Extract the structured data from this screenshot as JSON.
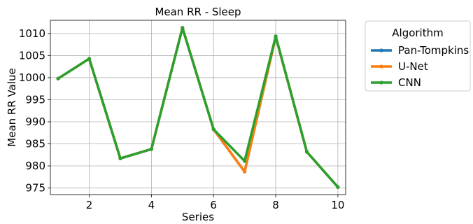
{
  "chart_data": {
    "type": "line",
    "title": "Mean RR - Sleep",
    "xlabel": "Series",
    "ylabel": "Mean RR Value",
    "x": [
      1,
      2,
      3,
      4,
      5,
      6,
      7,
      8,
      9,
      10
    ],
    "xlim": [
      0.75,
      10.25
    ],
    "ylim": [
      973.5,
      1013.0
    ],
    "xticks": [
      2,
      4,
      6,
      8,
      10
    ],
    "yticks": [
      975,
      980,
      985,
      990,
      995,
      1000,
      1005,
      1010
    ],
    "grid": true,
    "legend": {
      "title": "Algorithm",
      "placement": "outside-top-right"
    },
    "series": [
      {
        "name": "Pan-Tompkins",
        "color": "#1f77b4",
        "values": [
          999.8,
          1004.3,
          981.7,
          983.8,
          1011.3,
          988.3,
          978.7,
          1009.3,
          983.2,
          975.2
        ]
      },
      {
        "name": "U-Net",
        "color": "#ff7f0e",
        "values": [
          999.8,
          1004.3,
          981.7,
          983.8,
          1011.3,
          988.3,
          978.7,
          1009.3,
          983.2,
          975.2
        ]
      },
      {
        "name": "CNN",
        "color": "#2ca02c",
        "values": [
          999.8,
          1004.3,
          981.7,
          983.8,
          1011.3,
          988.3,
          981.1,
          1009.4,
          983.2,
          975.2
        ]
      }
    ]
  }
}
